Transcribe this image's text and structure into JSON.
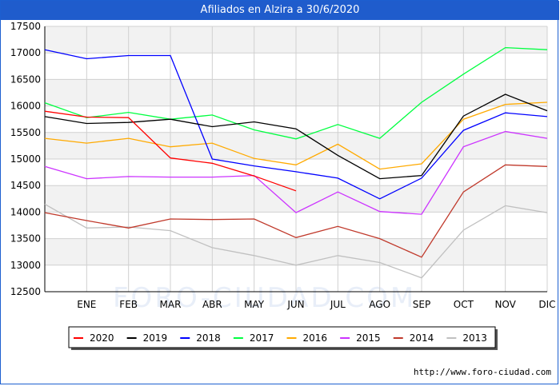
{
  "title": "Afiliados en Alzira a 30/6/2020",
  "watermark": "FORO-CIUDAD.COM",
  "footer_url": "http://www.foro-ciudad.com",
  "chart_data": {
    "type": "line",
    "title": "Afiliados en Alzira a 30/6/2020",
    "categories": [
      "",
      "ENE",
      "FEB",
      "MAR",
      "ABR",
      "MAY",
      "JUN",
      "JUL",
      "AGO",
      "SEP",
      "OCT",
      "NOV",
      "DIC"
    ],
    "ylim": [
      12500,
      17500
    ],
    "yticks": [
      12500,
      13000,
      13500,
      14000,
      14500,
      15000,
      15500,
      16000,
      16500,
      17000,
      17500
    ],
    "grid": true,
    "legend_position": "bottom",
    "series": [
      {
        "name": "2020",
        "color": "#ff0000",
        "values": [
          15900,
          15790,
          15780,
          15020,
          14920,
          14680,
          14400,
          null,
          null,
          null,
          null,
          null,
          null
        ]
      },
      {
        "name": "2019",
        "color": "#000000",
        "values": [
          15800,
          15670,
          15690,
          15750,
          15610,
          15700,
          15570,
          15070,
          14630,
          14690,
          15810,
          16220,
          15910
        ]
      },
      {
        "name": "2018",
        "color": "#0000ff",
        "values": [
          17060,
          16890,
          16950,
          16950,
          15000,
          14870,
          14760,
          14640,
          14250,
          14640,
          15540,
          15870,
          15800
        ]
      },
      {
        "name": "2017",
        "color": "#00ff40",
        "values": [
          16060,
          15780,
          15880,
          15750,
          15830,
          15550,
          15380,
          15650,
          15390,
          16070,
          16600,
          17100,
          17060
        ]
      },
      {
        "name": "2016",
        "color": "#ffaa00",
        "values": [
          15390,
          15300,
          15390,
          15230,
          15300,
          15010,
          14890,
          15280,
          14810,
          14910,
          15750,
          16030,
          16070
        ]
      },
      {
        "name": "2015",
        "color": "#cc33ff",
        "values": [
          14860,
          14630,
          14670,
          14660,
          14660,
          14690,
          13990,
          14380,
          14010,
          13960,
          15230,
          15520,
          15390
        ]
      },
      {
        "name": "2014",
        "color": "#c0392b",
        "values": [
          13990,
          13840,
          13700,
          13870,
          13860,
          13870,
          13520,
          13730,
          13500,
          13150,
          14380,
          14890,
          14860
        ]
      },
      {
        "name": "2013",
        "color": "#c0c0c0",
        "values": [
          14150,
          13700,
          13720,
          13650,
          13330,
          13180,
          13000,
          13180,
          13050,
          12760,
          13660,
          14120,
          13990
        ]
      }
    ]
  }
}
